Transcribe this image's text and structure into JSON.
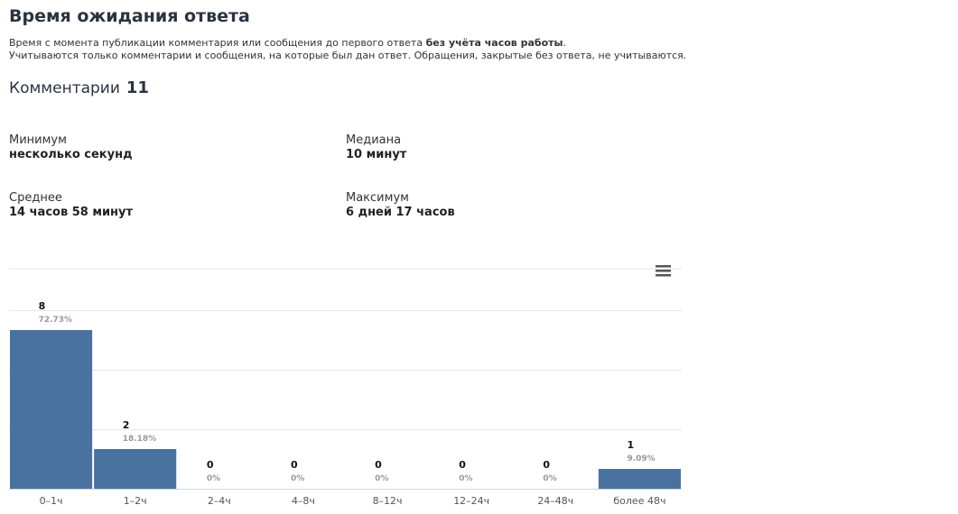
{
  "header": {
    "title": "Время ожидания ответа",
    "desc_line1_pre": "Время с момента публикации комментария или сообщения до первого ответа ",
    "desc_line1_bold": "без учёта часов работы",
    "desc_line1_post": ".",
    "desc_line2": "Учитываются только комментарии и сообщения, на которые был дан ответ. Обращения, закрытые без ответа, не учитываются."
  },
  "summary": {
    "label": "Комментарии",
    "count": "11"
  },
  "stats": {
    "min_label": "Минимум",
    "min_value": "несколько секунд",
    "median_label": "Медиана",
    "median_value": "10 минут",
    "avg_label": "Среднее",
    "avg_value": "14 часов 58 минут",
    "max_label": "Максимум",
    "max_value": "6 дней 17 часов"
  },
  "icons": {
    "menu": "hamburger-menu-icon"
  },
  "colors": {
    "bar": "#4a72a0",
    "grid": "#e6e6e6",
    "pct": "#999999"
  },
  "chart_data": {
    "type": "bar",
    "categories": [
      "0–1ч",
      "1–2ч",
      "2–4ч",
      "4–8ч",
      "8–12ч",
      "12–24ч",
      "24–48ч",
      "более 48ч"
    ],
    "values": [
      8,
      2,
      0,
      0,
      0,
      0,
      0,
      1
    ],
    "percent_labels": [
      "72.73%",
      "18.18%",
      "0%",
      "0%",
      "0%",
      "0%",
      "0%",
      "9.09%"
    ],
    "ylim": [
      0,
      9
    ],
    "grid": true
  }
}
